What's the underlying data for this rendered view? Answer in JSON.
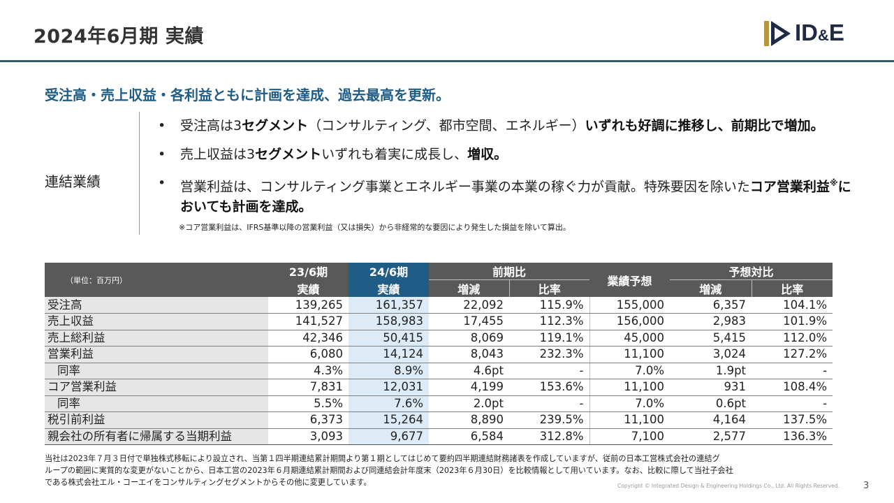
{
  "header": {
    "title": "2024年6月期 実績",
    "logo_text_main": "ID",
    "logo_text_amp": "&",
    "logo_text_end": "E"
  },
  "headline": "受注高・売上収益・各利益ともに計画を達成、過去最高を更新。",
  "section": {
    "label": "連結業績",
    "bullets": [
      {
        "t1": "受注高は3",
        "b1": "セグメント",
        "t2": "（コンサルティング、都市空間、エネルギー）",
        "b2": "いずれも好調に推移し、前期比で増加。"
      },
      {
        "t1": "売上収益は3",
        "b1": "セグメント",
        "t2": "いずれも着実に成長し、",
        "b2": "増収。"
      },
      {
        "t1": "営業利益は、コンサルティング事業とエネルギー事業の本業の稼ぐ力が貢献。特殊要因を除いた",
        "b1": "コア営業利益",
        "sup": "※",
        "b2": "においても計画を達成。"
      }
    ],
    "footnote": "※コア営業利益は、IFRS基準以降の営業利益（又は損失）から非経常的な要因により発生した損益を除いて算出。"
  },
  "table": {
    "unit": "（単位：百万円）",
    "headers": {
      "prev_period": "23/6期",
      "prev_actual": "実績",
      "curr_period": "24/6期",
      "curr_actual": "実績",
      "yoy": "前期比",
      "yoy_change": "増減",
      "yoy_ratio": "比率",
      "forecast": "業績予想",
      "vs_forecast": "予想対比",
      "fc_change": "増減",
      "fc_ratio": "比率"
    },
    "rows": [
      {
        "label": "受注高",
        "prev": "139,265",
        "curr": "161,357",
        "chg": "22,092",
        "ratio": "115.9%",
        "fc": "155,000",
        "fc_chg": "6,357",
        "fc_ratio": "104.1%"
      },
      {
        "label": "売上収益",
        "prev": "141,527",
        "curr": "158,983",
        "chg": "17,455",
        "ratio": "112.3%",
        "fc": "156,000",
        "fc_chg": "2,983",
        "fc_ratio": "101.9%"
      },
      {
        "label": "売上総利益",
        "prev": "42,346",
        "curr": "50,415",
        "chg": "8,069",
        "ratio": "119.1%",
        "fc": "45,000",
        "fc_chg": "5,415",
        "fc_ratio": "112.0%"
      },
      {
        "label": "営業利益",
        "prev": "6,080",
        "curr": "14,124",
        "chg": "8,043",
        "ratio": "232.3%",
        "fc": "11,100",
        "fc_chg": "3,024",
        "fc_ratio": "127.2%"
      },
      {
        "label": "同率",
        "indent": true,
        "prev": "4.3%",
        "curr": "8.9%",
        "chg": "4.6pt",
        "ratio": "-",
        "fc": "7.0%",
        "fc_chg": "1.9pt",
        "fc_ratio": "-"
      },
      {
        "label": "コア営業利益",
        "prev": "7,831",
        "curr": "12,031",
        "chg": "4,199",
        "ratio": "153.6%",
        "fc": "11,100",
        "fc_chg": "931",
        "fc_ratio": "108.4%"
      },
      {
        "label": "同率",
        "indent": true,
        "prev": "5.5%",
        "curr": "7.6%",
        "chg": "2.0pt",
        "ratio": "-",
        "fc": "7.0%",
        "fc_chg": "0.6pt",
        "fc_ratio": "-"
      },
      {
        "label": "税引前利益",
        "prev": "6,373",
        "curr": "15,264",
        "chg": "8,890",
        "ratio": "239.5%",
        "fc": "11,100",
        "fc_chg": "4,164",
        "fc_ratio": "137.5%"
      },
      {
        "label": "親会社の所有者に帰属する当期利益",
        "prev": "3,093",
        "curr": "9,677",
        "chg": "6,584",
        "ratio": "312.8%",
        "fc": "7,100",
        "fc_chg": "2,577",
        "fc_ratio": "136.3%"
      }
    ]
  },
  "notes": [
    "当社は2023年７月３日付で単独株式移転により設立され、当第１四半期連結累計期間より第１期としてはじめて要約四半期連結財務諸表を作成していますが、従前の日本工営株式会社の連結グ",
    "ループの範囲に実質的な変更がないことから、日本工営の2023年６月期連結累計期間および同連結会計年度末（2023年６月30日）を比較情報として用いています。なお、比較に際して当社子会社",
    "である株式会社エル・コーエイをコンサルティングセグメントからその他に変更しています。"
  ],
  "footer": {
    "copyright": "Copyright © Integrated Design & Engineering Holdings Co., Ltd.  All Rights Reserved.",
    "page_number": "3"
  },
  "colors": {
    "accent_blue": "#1f5c86",
    "header_rule": "#2f5f6e",
    "table_header": "#595959",
    "current_column": "#ddebf7",
    "logo_gold": "#b8963e",
    "logo_navy": "#1f2a44"
  }
}
